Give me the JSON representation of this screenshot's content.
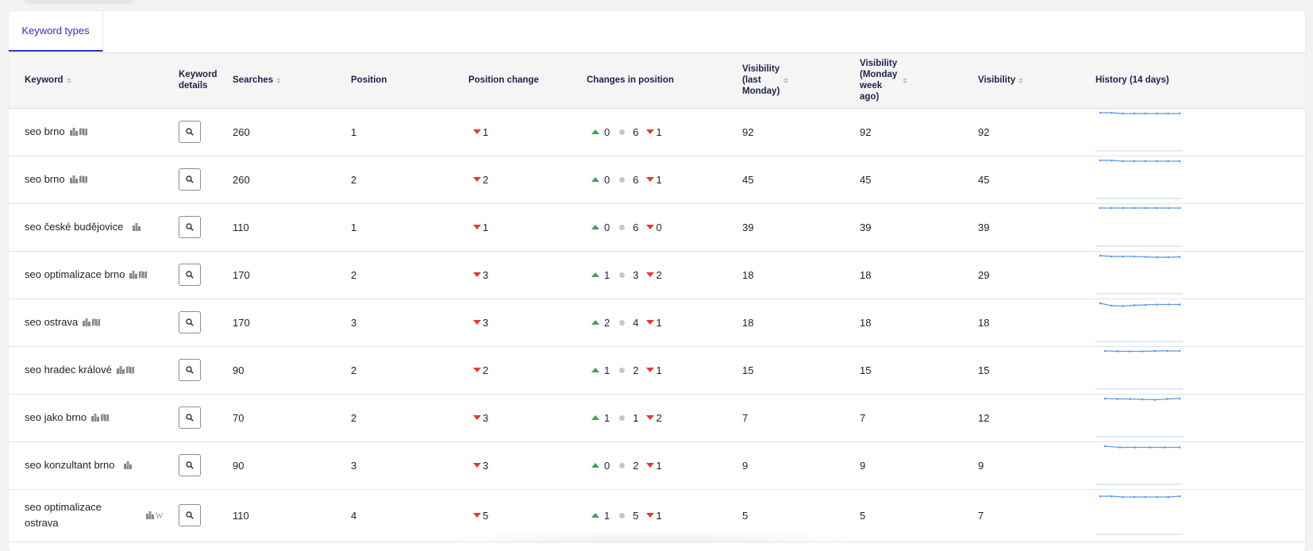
{
  "tabs": [
    {
      "label": "Keyword types",
      "active": true
    }
  ],
  "columns": {
    "keyword": "Keyword",
    "keyword_details": "Keyword details",
    "searches": "Searches",
    "position": "Position",
    "position_change": "Position change",
    "changes_in_position": "Changes in position",
    "vis_last_monday": "Visibility (last Monday)",
    "vis_monday_week_ago": "Visibility (Monday week ago)",
    "visibility": "Visibility",
    "history": "History (14 days)"
  },
  "rows": [
    {
      "keyword": "seo brno",
      "icons": [
        "building-icon",
        "map-icon"
      ],
      "searches": "260",
      "position": "1",
      "position_change": "1",
      "changes": {
        "up": "0",
        "same": "6",
        "down": "1"
      },
      "vis_last_monday": "92",
      "vis_week_ago": "92",
      "visibility": "92",
      "history": [
        1,
        1,
        1.2,
        1.2,
        1.2,
        1.2,
        1.2,
        1.2
      ]
    },
    {
      "keyword": "seo brno",
      "icons": [
        "building-icon",
        "map-icon"
      ],
      "searches": "260",
      "position": "2",
      "position_change": "2",
      "changes": {
        "up": "0",
        "same": "6",
        "down": "1"
      },
      "vis_last_monday": "45",
      "vis_week_ago": "45",
      "visibility": "45",
      "history": [
        1,
        1,
        1.2,
        1.2,
        1.2,
        1.2,
        1.2,
        1.2
      ]
    },
    {
      "keyword": "seo české budějovice",
      "icons": [
        "building-icon"
      ],
      "searches": "110",
      "position": "1",
      "position_change": "1",
      "changes": {
        "up": "0",
        "same": "6",
        "down": "0"
      },
      "vis_last_monday": "39",
      "vis_week_ago": "39",
      "visibility": "39",
      "history": [
        1,
        1,
        1,
        1,
        1,
        1,
        1,
        1
      ]
    },
    {
      "keyword": "seo optimalizace brno",
      "icons": [
        "building-icon",
        "map-icon"
      ],
      "searches": "170",
      "position": "2",
      "position_change": "3",
      "changes": {
        "up": "1",
        "same": "3",
        "down": "2"
      },
      "vis_last_monday": "18",
      "vis_week_ago": "18",
      "visibility": "29",
      "history": [
        1,
        1.2,
        1.2,
        1.2,
        1.3,
        1.4,
        1.4,
        1.3
      ]
    },
    {
      "keyword": "seo ostrava",
      "icons": [
        "building-icon",
        "map-icon"
      ],
      "searches": "170",
      "position": "3",
      "position_change": "3",
      "changes": {
        "up": "2",
        "same": "4",
        "down": "1"
      },
      "vis_last_monday": "18",
      "vis_week_ago": "18",
      "visibility": "18",
      "history": [
        1,
        1.6,
        1.7,
        1.5,
        1.4,
        1.3,
        1.3,
        1.3
      ]
    },
    {
      "keyword": "seo hradec králové",
      "icons": [
        "building-icon",
        "map-icon"
      ],
      "searches": "90",
      "position": "2",
      "position_change": "2",
      "changes": {
        "up": "1",
        "same": "2",
        "down": "1"
      },
      "vis_last_monday": "15",
      "vis_week_ago": "15",
      "visibility": "15",
      "history": [
        1,
        1.1,
        1.1,
        1.1,
        1,
        1,
        1
      ]
    },
    {
      "keyword": "seo jako brno",
      "icons": [
        "building-icon",
        "map-icon"
      ],
      "searches": "70",
      "position": "2",
      "position_change": "3",
      "changes": {
        "up": "1",
        "same": "1",
        "down": "2"
      },
      "vis_last_monday": "7",
      "vis_week_ago": "7",
      "visibility": "12",
      "history": [
        1,
        1.1,
        1.1,
        1.2,
        1.3,
        1.1,
        1
      ]
    },
    {
      "keyword": "seo konzultant brno",
      "icons": [
        "building-icon"
      ],
      "searches": "90",
      "position": "3",
      "position_change": "3",
      "changes": {
        "up": "0",
        "same": "2",
        "down": "1"
      },
      "vis_last_monday": "9",
      "vis_week_ago": "9",
      "visibility": "9",
      "history": [
        1,
        1.3,
        1.3,
        1.3,
        1.3,
        1.3
      ]
    },
    {
      "keyword": "seo optimalizace ostrava",
      "icons": [
        "building-icon",
        "wikipedia-icon"
      ],
      "searches": "110",
      "position": "4",
      "position_change": "5",
      "changes": {
        "up": "1",
        "same": "5",
        "down": "1"
      },
      "vis_last_monday": "5",
      "vis_week_ago": "5",
      "visibility": "7",
      "history": [
        1,
        1,
        1.2,
        1.2,
        1.2,
        1.2,
        1.2,
        1
      ]
    }
  ],
  "colors": {
    "accent": "#2e2ed1",
    "down": "#e53935",
    "up": "#3aa655",
    "spark": "#5b9be6"
  }
}
